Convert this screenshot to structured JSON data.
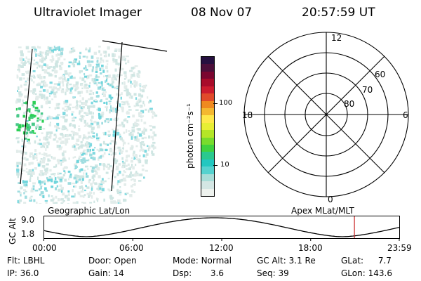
{
  "header": {
    "instrument": "Ultraviolet Imager",
    "date": "08 Nov 07",
    "time": "20:57:59 UT"
  },
  "colorbar": {
    "label": "photon cm⁻²s⁻¹",
    "ticks": [
      "100",
      "10"
    ],
    "colors": [
      "#eef2ee",
      "#d4e6e4",
      "#a8ddd8",
      "#55d2cf",
      "#22c7c0",
      "#2ac98e",
      "#3fd23f",
      "#78dc2d",
      "#b4e628",
      "#e8ee34",
      "#ffe84a",
      "#f4b830",
      "#ef8a20",
      "#e14a2a",
      "#cc1c2e",
      "#a80c2a",
      "#7a0630",
      "#4c0f3a",
      "#261040"
    ]
  },
  "polar_plot": {
    "mlt_labels": {
      "top": "12",
      "left": "18",
      "right": "6",
      "bottom": "0"
    },
    "lat_labels": [
      "60",
      "70",
      "80"
    ]
  },
  "timeline": {
    "left_label": "Geographic Lat/Lon",
    "right_label": "Apex MLat/MLT",
    "axis_label": "GC Alt",
    "y_ticks": [
      "9.0",
      "1.8"
    ],
    "x_ticks": [
      "00:00",
      "06:00",
      "12:00",
      "18:00",
      "23:59"
    ],
    "current_time_fraction": 0.874
  },
  "status": {
    "row1": [
      {
        "label": "Flt:",
        "value": "LBHL"
      },
      {
        "label": "Door:",
        "value": "Open"
      },
      {
        "label": "Mode:",
        "value": "Normal"
      },
      {
        "label": "GC Alt:",
        "value": "3.1 Re"
      },
      {
        "label": "GLat:",
        "value": "7.7"
      }
    ],
    "row2": [
      {
        "label": "IP:",
        "value": "36.0"
      },
      {
        "label": "Gain:",
        "value": "14"
      },
      {
        "label": "Dsp:",
        "value": "3.6"
      },
      {
        "label": "Seq:",
        "value": "39"
      },
      {
        "label": "GLon:",
        "value": "143.6"
      }
    ]
  }
}
